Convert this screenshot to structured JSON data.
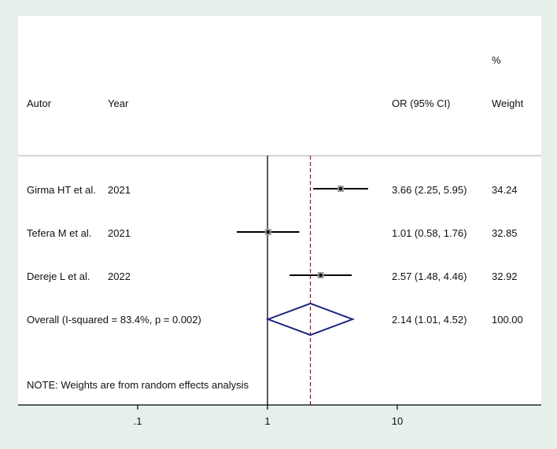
{
  "chart_data": {
    "type": "forest",
    "headers": {
      "author": "Autor",
      "year": "Year",
      "or": "OR (95% CI)",
      "weight_pct": "%",
      "weight": "Weight"
    },
    "studies": [
      {
        "author": "Girma HT et al.",
        "year": "2021",
        "or": 3.66,
        "lo": 2.25,
        "hi": 5.95,
        "or_text": "3.66 (2.25, 5.95)",
        "weight": "34.24"
      },
      {
        "author": "Tefera M et al.",
        "year": "2021",
        "or": 1.01,
        "lo": 0.58,
        "hi": 1.76,
        "or_text": "1.01 (0.58, 1.76)",
        "weight": "32.85"
      },
      {
        "author": "Dereje L et al.",
        "year": "2022",
        "or": 2.57,
        "lo": 1.48,
        "hi": 4.46,
        "or_text": "2.57 (1.48, 4.46)",
        "weight": "32.92"
      }
    ],
    "overall": {
      "label": "Overall  (I-squared = 83.4%, p = 0.002)",
      "or": 2.14,
      "lo": 1.01,
      "hi": 4.52,
      "or_text": "2.14 (1.01, 4.52)",
      "weight": "100.00"
    },
    "note": "NOTE: Weights are from random effects analysis",
    "x_scale": "log",
    "ticks": [
      {
        "value": 0.1,
        "label": ".1"
      },
      {
        "value": 1,
        "label": "1"
      },
      {
        "value": 10,
        "label": "10"
      }
    ],
    "null_line": 1,
    "colors": {
      "background": "#e6efe9",
      "plot": "#ffffff",
      "diamond": "#1a237e",
      "pooled_line": "#8b1a1a",
      "lines": "#000000"
    }
  }
}
